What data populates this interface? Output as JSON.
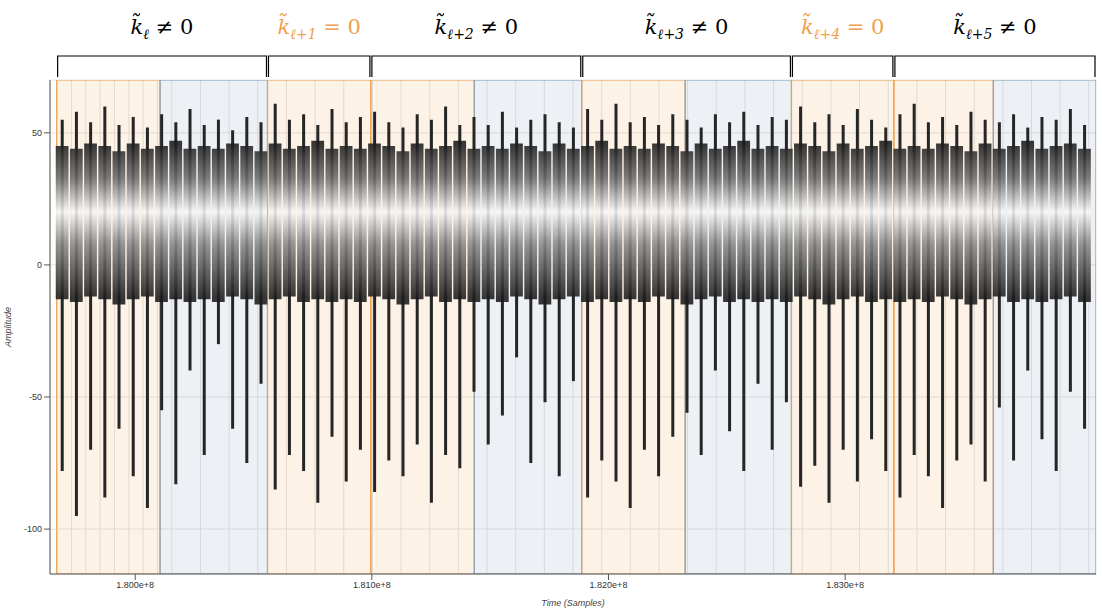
{
  "chart_data": {
    "type": "bar",
    "x_label": "Time (Samples)",
    "y_label": "Amplitude",
    "grid": true,
    "xlim": [
      179640000,
      184060000
    ],
    "xticks": [
      {
        "value": 180000000,
        "label": "1.800e+8"
      },
      {
        "value": 181000000,
        "label": "1.810e+8"
      },
      {
        "value": 182000000,
        "label": "1.820e+8"
      },
      {
        "value": 183000000,
        "label": "1.830e+8"
      }
    ],
    "ylim": [
      -117,
      70
    ],
    "yticks": [
      -100,
      -50,
      0,
      50
    ],
    "x": [
      179690000,
      179750000,
      179810000,
      179870000,
      179930000,
      179990000,
      180050000,
      180110000,
      180170000,
      180230000,
      180290000,
      180350000,
      180410000,
      180470000,
      180530000,
      180590000,
      180650000,
      180710000,
      180770000,
      180830000,
      180890000,
      180950000,
      181010000,
      181070000,
      181130000,
      181190000,
      181250000,
      181310000,
      181370000,
      181430000,
      181490000,
      181550000,
      181610000,
      181670000,
      181730000,
      181790000,
      181850000,
      181910000,
      181970000,
      182030000,
      182090000,
      182150000,
      182210000,
      182270000,
      182330000,
      182390000,
      182450000,
      182510000,
      182570000,
      182630000,
      182690000,
      182750000,
      182810000,
      182870000,
      182930000,
      182990000,
      183050000,
      183110000,
      183170000,
      183230000,
      183290000,
      183350000,
      183410000,
      183470000,
      183530000,
      183590000,
      183650000,
      183710000,
      183770000,
      183830000,
      183890000,
      183950000,
      184010000
    ],
    "series": [
      {
        "type": "bar",
        "color": "#262626",
        "low": [
          -78,
          -95,
          -70,
          -88,
          -62,
          -80,
          -92,
          -55,
          -83,
          -40,
          -72,
          -30,
          -62,
          -75,
          -45,
          -85,
          -72,
          -78,
          -90,
          -65,
          -82,
          -70,
          -86,
          -74,
          -80,
          -68,
          -90,
          -72,
          -77,
          -48,
          -68,
          -57,
          -35,
          -75,
          -52,
          -80,
          -44,
          -88,
          -74,
          -82,
          -92,
          -70,
          -80,
          -65,
          -56,
          -72,
          -40,
          -63,
          -78,
          -45,
          -70,
          -52,
          -84,
          -76,
          -90,
          -70,
          -82,
          -66,
          -78,
          -88,
          -72,
          -80,
          -92,
          -74,
          -68,
          -82,
          -54,
          -74,
          -40,
          -66,
          -78,
          -48,
          -62
        ],
        "high": [
          55,
          58,
          54,
          60,
          53,
          56,
          52,
          57,
          54,
          59,
          53,
          55,
          51,
          56,
          54,
          61,
          55,
          57,
          53,
          59,
          54,
          56,
          58,
          54,
          52,
          57,
          55,
          60,
          53,
          56,
          53,
          58,
          52,
          55,
          57,
          54,
          52,
          59,
          55,
          61,
          54,
          56,
          53,
          57,
          55,
          52,
          57,
          54,
          58,
          53,
          56,
          55,
          60,
          54,
          57,
          53,
          59,
          55,
          52,
          57,
          61,
          54,
          56,
          53,
          58,
          55,
          54,
          57,
          52,
          56,
          55,
          59,
          53
        ]
      },
      {
        "type": "band",
        "color": "#1c1c1c",
        "low": [
          -13,
          -14,
          -12,
          -13,
          -15,
          -13,
          -12,
          -14,
          -13,
          -14,
          -13,
          -14,
          -12,
          -13,
          -15,
          -13,
          -12,
          -14,
          -13,
          -14,
          -13,
          -14,
          -12,
          -13,
          -15,
          -13,
          -12,
          -14,
          -13,
          -14,
          -13,
          -14,
          -12,
          -13,
          -15,
          -13,
          -12,
          -14,
          -13,
          -14,
          -13,
          -14,
          -12,
          -13,
          -15,
          -13,
          -12,
          -14,
          -13,
          -14,
          -13,
          -14,
          -12,
          -13,
          -15,
          -13,
          -12,
          -14,
          -13,
          -14,
          -13,
          -14,
          -12,
          -13,
          -15,
          -13,
          -12,
          -14,
          -13,
          -14,
          -13,
          -12,
          -14
        ],
        "high": [
          45,
          44,
          46,
          45,
          43,
          46,
          44,
          45,
          47,
          44,
          45,
          44,
          46,
          45,
          43,
          46,
          44,
          45,
          47,
          44,
          45,
          44,
          46,
          45,
          43,
          46,
          44,
          45,
          47,
          44,
          45,
          44,
          46,
          45,
          43,
          46,
          44,
          45,
          47,
          44,
          45,
          44,
          46,
          45,
          43,
          46,
          44,
          45,
          47,
          44,
          45,
          44,
          46,
          45,
          43,
          46,
          44,
          45,
          47,
          44,
          45,
          44,
          46,
          45,
          43,
          46,
          44,
          45,
          47,
          44,
          45,
          46,
          44
        ]
      }
    ],
    "regions": [
      {
        "x0": 179668000,
        "x1": 180105000,
        "color": "#f0a04b"
      },
      {
        "x0": 180105000,
        "x1": 180559000,
        "color": "#7f9fbf"
      },
      {
        "x0": 180559000,
        "x1": 180996000,
        "color": "#f0a04b"
      },
      {
        "x0": 180996000,
        "x1": 181433000,
        "color": "#f0a04b"
      },
      {
        "x0": 181433000,
        "x1": 181887000,
        "color": "#7f9fbf"
      },
      {
        "x0": 181887000,
        "x1": 182324000,
        "color": "#f0a04b"
      },
      {
        "x0": 182324000,
        "x1": 182773000,
        "color": "#7f9fbf"
      },
      {
        "x0": 182773000,
        "x1": 183206000,
        "color": "#f0a04b"
      },
      {
        "x0": 183206000,
        "x1": 183626000,
        "color": "#f0a04b"
      },
      {
        "x0": 183626000,
        "x1": 184060000,
        "color": "#7f9fbf"
      }
    ],
    "brackets": [
      {
        "x0": 179668000,
        "x1": 180559000,
        "base": "k̃",
        "sub": "ℓ",
        "rel": "≠ 0",
        "color": "#000000"
      },
      {
        "x0": 180559000,
        "x1": 180996000,
        "base": "k̃",
        "sub": "ℓ+1",
        "rel": "= 0",
        "color": "#f0a04b"
      },
      {
        "x0": 180996000,
        "x1": 181887000,
        "base": "k̃",
        "sub": "ℓ+2",
        "rel": "≠ 0",
        "color": "#000000"
      },
      {
        "x0": 181887000,
        "x1": 182773000,
        "base": "k̃",
        "sub": "ℓ+3",
        "rel": "≠ 0",
        "color": "#000000"
      },
      {
        "x0": 182773000,
        "x1": 183206000,
        "base": "k̃",
        "sub": "ℓ+4",
        "rel": "= 0",
        "color": "#f0a04b"
      },
      {
        "x0": 183206000,
        "x1": 184060000,
        "base": "k̃",
        "sub": "ℓ+5",
        "rel": "≠ 0",
        "color": "#000000"
      }
    ]
  }
}
